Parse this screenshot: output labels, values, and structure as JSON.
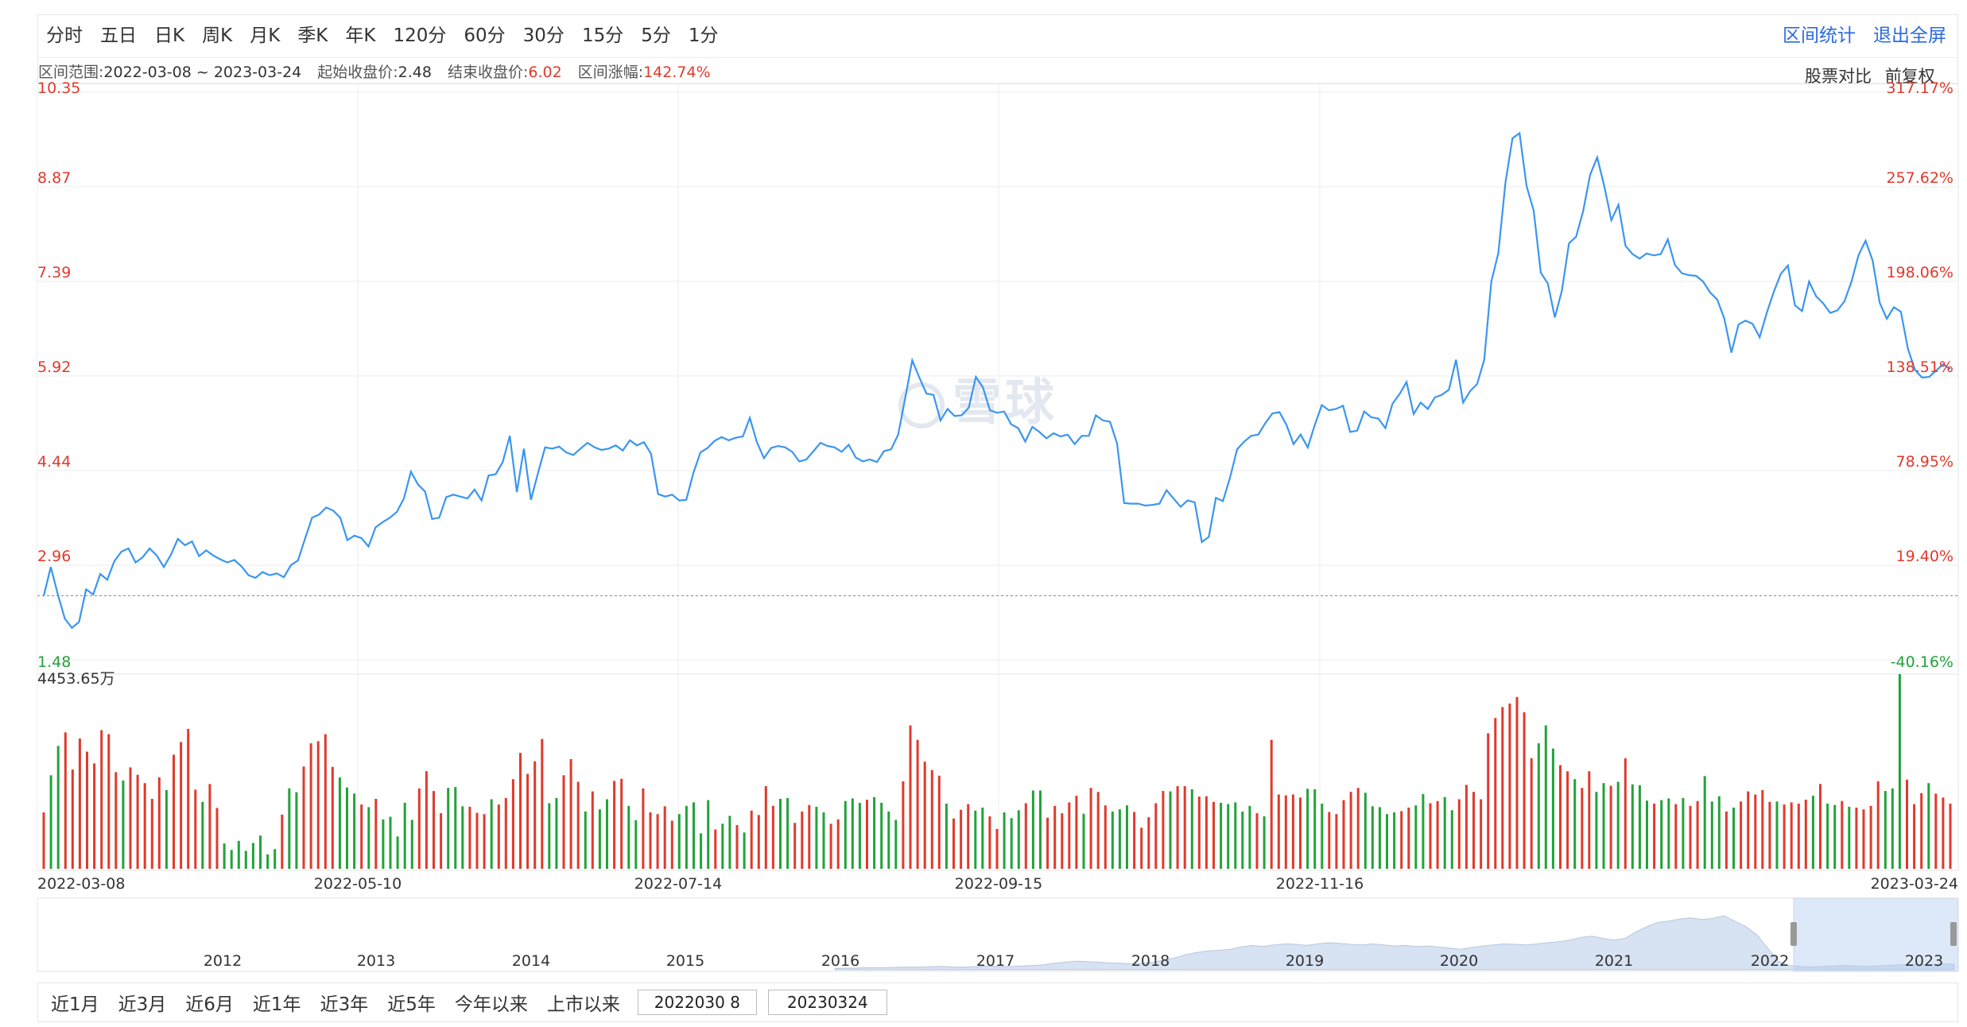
{
  "toolbar": {
    "periods": [
      "分时",
      "五日",
      "日K",
      "周K",
      "月K",
      "季K",
      "年K",
      "120分",
      "60分",
      "30分",
      "15分",
      "5分",
      "1分"
    ],
    "stats_label": "区间统计",
    "exit_label": "退出全屏"
  },
  "info": {
    "range_label": "区间范围:",
    "range_value": "2022-03-08 ~ 2023-03-24",
    "start_label": "起始收盘价:",
    "start_value": "2.48",
    "end_label": "结束收盘价:",
    "end_value": "6.02",
    "change_label": "区间涨幅:",
    "change_value": "142.74%",
    "compare_label": "股票对比",
    "adjust_label": "前复权"
  },
  "colors": {
    "line": "#3a96f0",
    "up": "#e03a2c",
    "down": "#22a33a",
    "grid": "#ececec",
    "nav_fill": "#d7e2f3"
  },
  "chart_data": [
    {
      "type": "line",
      "title": "",
      "price_ticks": [
        "10.35",
        "8.87",
        "7.39",
        "5.92",
        "4.44",
        "2.96",
        "1.48"
      ],
      "pct_ticks": [
        "317.17%",
        "257.62%",
        "198.06%",
        "138.51%",
        "78.95%",
        "19.40%",
        "-40.16%"
      ],
      "ylim": [
        1.48,
        10.35
      ],
      "baseline": 2.48,
      "x_tick_labels": [
        "2022-03-08",
        "2022-05-10",
        "2022-07-14",
        "2022-09-15",
        "2022-11-16",
        "2023-03-24"
      ],
      "series": [
        {
          "values": [
            2.48,
            2.93,
            2.5,
            2.12,
            1.98,
            2.07,
            2.58,
            2.5,
            2.82,
            2.73,
            3.02,
            3.17,
            3.22,
            3.0,
            3.08,
            3.22,
            3.11,
            2.93,
            3.12,
            3.37,
            3.27,
            3.33,
            3.1,
            3.19,
            3.11,
            3.05,
            3.0,
            3.04,
            2.94,
            2.8,
            2.76,
            2.85,
            2.8,
            2.83,
            2.77,
            2.96,
            3.03,
            3.37,
            3.7,
            3.75,
            3.86,
            3.81,
            3.7,
            3.35,
            3.42,
            3.38,
            3.25,
            3.55,
            3.63,
            3.7,
            3.79,
            4.0,
            4.42,
            4.22,
            4.11,
            3.68,
            3.7,
            4.02,
            4.06,
            4.03,
            4.0,
            4.14,
            3.97,
            4.36,
            4.38,
            4.57,
            4.98,
            4.1,
            4.78,
            3.98,
            4.4,
            4.8,
            4.78,
            4.81,
            4.72,
            4.68,
            4.78,
            4.87,
            4.8,
            4.76,
            4.78,
            4.83,
            4.75,
            4.91,
            4.83,
            4.88,
            4.7,
            4.07,
            4.03,
            4.06,
            3.97,
            3.98,
            4.4,
            4.72,
            4.79,
            4.9,
            4.96,
            4.91,
            4.95,
            4.97,
            5.26,
            4.88,
            4.63,
            4.79,
            4.82,
            4.8,
            4.73,
            4.58,
            4.61,
            4.74,
            4.87,
            4.82,
            4.8,
            4.73,
            4.84,
            4.64,
            4.58,
            4.61,
            4.57,
            4.74,
            4.77,
            5.0,
            5.57,
            6.16,
            5.89,
            5.64,
            5.62,
            5.22,
            5.4,
            5.29,
            5.3,
            5.42,
            5.9,
            5.74,
            5.38,
            5.34,
            5.36,
            5.16,
            5.1,
            4.89,
            5.12,
            5.04,
            4.94,
            5.02,
            4.97,
            5.0,
            4.85,
            4.98,
            4.98,
            5.3,
            5.22,
            5.2,
            4.86,
            3.93,
            3.92,
            3.92,
            3.89,
            3.9,
            3.92,
            4.13,
            4.0,
            3.87,
            3.97,
            3.94,
            3.32,
            3.4,
            4.01,
            3.96,
            4.33,
            4.77,
            4.89,
            4.98,
            5.0,
            5.18,
            5.33,
            5.35,
            5.15,
            4.85,
            5.0,
            4.8,
            5.15,
            5.46,
            5.38,
            5.4,
            5.45,
            5.04,
            5.06,
            5.36,
            5.27,
            5.25,
            5.1,
            5.48,
            5.63,
            5.82,
            5.32,
            5.5,
            5.4,
            5.58,
            5.62,
            5.7,
            6.17,
            5.5,
            5.68,
            5.79,
            6.17,
            7.39,
            7.84,
            8.94,
            9.63,
            9.71,
            8.88,
            8.5,
            7.53,
            7.36,
            6.83,
            7.25,
            7.99,
            8.09,
            8.49,
            9.06,
            9.33,
            8.88,
            8.35,
            8.59,
            7.95,
            7.82,
            7.75,
            7.83,
            7.8,
            7.82,
            8.05,
            7.65,
            7.52,
            7.49,
            7.48,
            7.39,
            7.22,
            7.11,
            6.81,
            6.28,
            6.72,
            6.78,
            6.73,
            6.52,
            6.9,
            7.23,
            7.51,
            7.64,
            7.02,
            6.93,
            7.39,
            7.16,
            7.05,
            6.9,
            6.94,
            7.08,
            7.39,
            7.8,
            8.03,
            7.72,
            7.06,
            6.81,
            6.99,
            6.92,
            6.34,
            6.01,
            5.89,
            5.9,
            6.0,
            6.1,
            6.02
          ]
        }
      ]
    },
    {
      "type": "bar",
      "title": "",
      "ylabel_top": "4453.65万",
      "max_value": 4453.65,
      "up_color": "#e03a2c",
      "down_color": "#22a33a",
      "values": [
        1290,
        2140,
        2810,
        3120,
        2270,
        2980,
        2680,
        2410,
        3170,
        3080,
        2210,
        2020,
        2320,
        2150,
        1960,
        1600,
        2090,
        1800,
        2610,
        2900,
        3200,
        1810,
        1530,
        1940,
        1390,
        580,
        430,
        640,
        410,
        590,
        760,
        330,
        450,
        1240,
        1840,
        1750,
        2340,
        2870,
        2920,
        3080,
        2330,
        2090,
        1860,
        1720,
        1470,
        1410,
        1600,
        1130,
        1190,
        740,
        1510,
        1120,
        1840,
        2230,
        1780,
        1270,
        1850,
        1870,
        1430,
        1420,
        1280,
        1250,
        1590,
        1470,
        1620,
        2050,
        2650,
        2170,
        2460,
        2970,
        1500,
        1620,
        2140,
        2510,
        1990,
        1310,
        1770,
        1360,
        1590,
        2010,
        2060,
        1440,
        1110,
        1840,
        1290,
        1250,
        1430,
        1100,
        1250,
        1440,
        1520,
        810,
        1570,
        900,
        1030,
        1210,
        1000,
        830,
        1330,
        1230,
        1890,
        1440,
        1600,
        1620,
        1050,
        1310,
        1460,
        1420,
        1290,
        1030,
        1130,
        1550,
        1610,
        1510,
        1580,
        1640,
        1510,
        1310,
        1120,
        2000,
        3280,
        2950,
        2450,
        2260,
        2130,
        1490,
        1150,
        1350,
        1480,
        1330,
        1400,
        1200,
        910,
        1290,
        1160,
        1340,
        1500,
        1790,
        1790,
        1170,
        1440,
        1270,
        1520,
        1670,
        1260,
        1850,
        1760,
        1450,
        1310,
        1360,
        1450,
        1300,
        940,
        1180,
        1500,
        1780,
        1770,
        1890,
        1890,
        1820,
        1650,
        1660,
        1530,
        1510,
        1480,
        1520,
        1310,
        1440,
        1270,
        1200,
        2950,
        1700,
        1680,
        1700,
        1630,
        1830,
        1820,
        1490,
        1300,
        1250,
        1570,
        1760,
        1850,
        1740,
        1430,
        1410,
        1250,
        1290,
        1320,
        1400,
        1450,
        1710,
        1500,
        1550,
        1640,
        1340,
        1590,
        1920,
        1760,
        1590,
        3100,
        3450,
        3700,
        3780,
        3930,
        3580,
        2530,
        2870,
        3280,
        2750,
        2370,
        2230,
        2050,
        1850,
        2230,
        1760,
        1960,
        1900,
        1990,
        2530,
        1930,
        1910,
        1560,
        1490,
        1570,
        1610,
        1480,
        1620,
        1440,
        1550,
        2120,
        1540,
        1660,
        1310,
        1400,
        1540,
        1770,
        1700,
        1800,
        1530,
        1540,
        1470,
        1520,
        1490,
        1580,
        1670,
        1940,
        1490,
        1460,
        1550,
        1420,
        1400,
        1360,
        1440,
        2000,
        1780,
        1840,
        4453.65,
        2040,
        1480,
        1730,
        1960,
        1720,
        1630,
        1490
      ],
      "up": [
        1,
        0,
        0,
        1,
        1,
        1,
        1,
        1,
        1,
        1,
        1,
        0,
        1,
        1,
        1,
        1,
        1,
        0,
        1,
        1,
        1,
        1,
        0,
        1,
        1,
        0,
        0,
        0,
        0,
        0,
        0,
        0,
        0,
        1,
        0,
        0,
        1,
        1,
        1,
        1,
        1,
        0,
        0,
        0,
        1,
        0,
        1,
        0,
        0,
        0,
        0,
        0,
        1,
        1,
        1,
        1,
        0,
        0,
        0,
        1,
        1,
        1,
        0,
        1,
        1,
        1,
        1,
        1,
        1,
        1,
        0,
        0,
        1,
        1,
        1,
        0,
        1,
        0,
        0,
        1,
        1,
        0,
        0,
        1,
        1,
        1,
        1,
        1,
        0,
        0,
        0,
        0,
        0,
        1,
        0,
        0,
        1,
        0,
        1,
        1,
        1,
        1,
        0,
        0,
        1,
        1,
        1,
        0,
        0,
        1,
        1,
        0,
        0,
        0,
        1,
        0,
        0,
        0,
        0,
        1,
        1,
        1,
        1,
        1,
        1,
        0,
        1,
        1,
        1,
        0,
        0,
        1,
        1,
        0,
        0,
        0,
        1,
        0,
        0,
        1,
        1,
        1,
        1,
        1,
        0,
        1,
        1,
        1,
        0,
        0,
        0,
        1,
        1,
        1,
        1,
        1,
        0,
        1,
        1,
        0,
        1,
        1,
        1,
        0,
        0,
        0,
        0,
        0,
        1,
        0,
        1,
        1,
        1,
        1,
        1,
        0,
        0,
        0,
        1,
        1,
        1,
        1,
        1,
        0,
        0,
        0,
        0,
        0,
        1,
        1,
        0,
        0,
        1,
        1,
        0,
        0,
        1,
        1,
        1,
        1,
        1,
        1,
        1,
        1,
        1,
        1,
        1,
        0,
        0,
        0,
        1,
        1,
        0,
        1,
        1,
        0,
        0,
        1,
        0,
        1,
        0,
        0,
        0,
        1,
        0,
        0,
        1,
        0,
        1,
        1,
        0,
        0,
        0,
        1,
        0,
        1,
        1,
        1,
        1,
        1,
        0,
        1,
        1,
        1,
        1,
        0,
        1,
        0,
        0,
        1,
        0,
        1,
        1,
        1,
        1,
        0,
        0,
        0,
        1,
        1,
        1,
        0,
        1,
        1,
        1
      ]
    },
    {
      "type": "area",
      "title": "",
      "years": [
        "2012",
        "2013",
        "2014",
        "2015",
        "2016",
        "2017",
        "2018",
        "2019",
        "2020",
        "2021",
        "2022",
        "2023"
      ],
      "values": [
        0.02,
        0.03,
        0.03,
        0.04,
        0.04,
        0.04,
        0.05,
        0.05,
        0.05,
        0.06,
        0.06,
        0.05,
        0.05,
        0.06,
        0.07,
        0.06,
        0.06,
        0.07,
        0.08,
        0.09,
        0.12,
        0.14,
        0.16,
        0.15,
        0.14,
        0.13,
        0.12,
        0.11,
        0.12,
        0.14,
        0.18,
        0.22,
        0.28,
        0.32,
        0.35,
        0.36,
        0.38,
        0.42,
        0.45,
        0.43,
        0.46,
        0.48,
        0.47,
        0.45,
        0.48,
        0.5,
        0.49,
        0.47,
        0.46,
        0.48,
        0.46,
        0.44,
        0.45,
        0.43,
        0.44,
        0.42,
        0.4,
        0.38,
        0.41,
        0.44,
        0.46,
        0.48,
        0.47,
        0.46,
        0.48,
        0.5,
        0.52,
        0.55,
        0.6,
        0.62,
        0.58,
        0.55,
        0.58,
        0.7,
        0.8,
        0.88,
        0.9,
        0.94,
        0.96,
        0.93,
        0.95,
        1.0,
        0.9,
        0.8,
        0.65,
        0.4,
        0.15,
        0.08,
        0.06,
        0.05,
        0.06,
        0.07,
        0.08,
        0.07,
        0.06,
        0.07,
        0.08,
        0.09,
        0.1,
        0.09,
        0.1,
        0.11,
        0.1
      ]
    }
  ],
  "navigator": {
    "years": [
      "2012",
      "2013",
      "2014",
      "2015",
      "2016",
      "2017",
      "2018",
      "2019",
      "2020",
      "2021",
      "2022",
      "2023"
    ]
  },
  "bottom": {
    "ranges": [
      "近1月",
      "近3月",
      "近6月",
      "近1年",
      "近3年",
      "近5年",
      "今年以来",
      "上市以来"
    ],
    "start_date": "2022030 8",
    "end_date": "20230324"
  }
}
